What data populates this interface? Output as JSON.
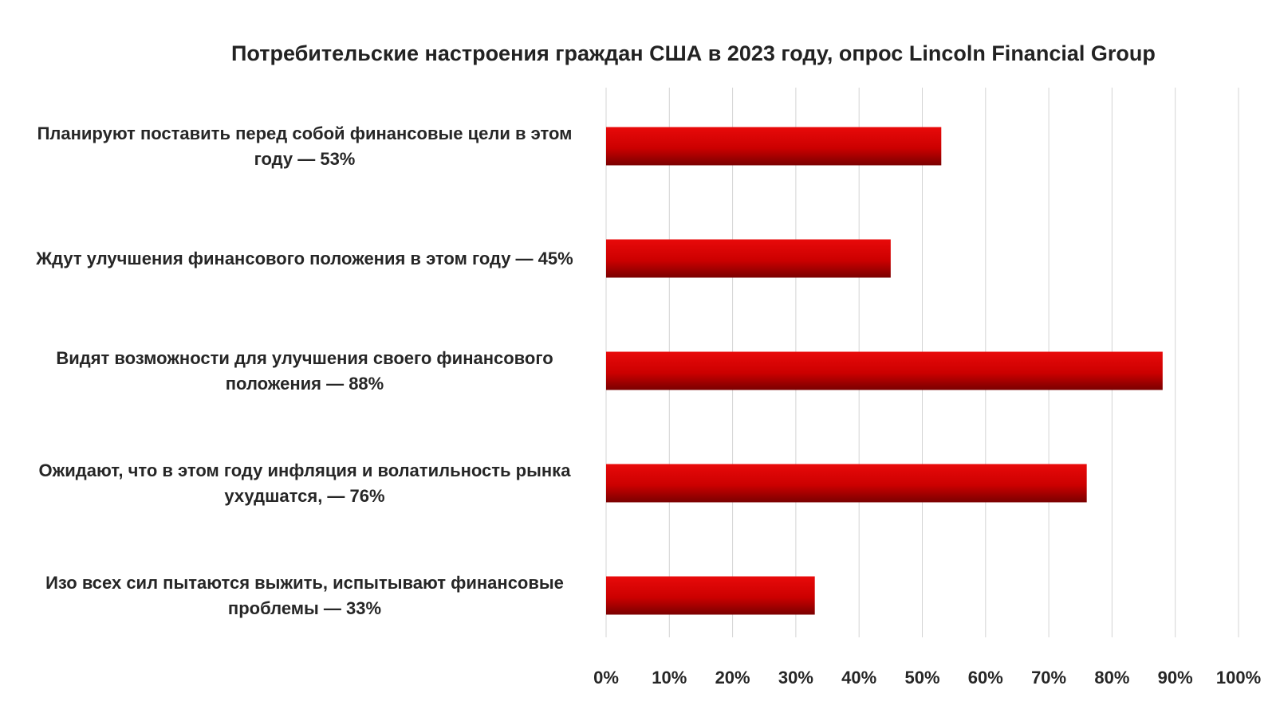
{
  "chart_data": {
    "type": "bar",
    "orientation": "horizontal",
    "title": "Потребительские настроения граждан США в 2023 году, опрос Lincoln Financial Group",
    "categories": [
      "Планируют поставить перед собой финансовые цели в этом году — 53%",
      "Ждут улучшения финансового положения в этом году — 45%",
      "Видят возможности для улучшения своего финансового положения — 88%",
      "Ожидают, что в этом году инфляция и волатильность рынка ухудшатся, — 76%",
      "Изо всех сил пытаются выжить, испытывают финансовые проблемы — 33%"
    ],
    "values": [
      53,
      45,
      88,
      76,
      33
    ],
    "xlim": [
      0,
      100
    ],
    "x_ticks": [
      "0%",
      "10%",
      "20%",
      "30%",
      "40%",
      "50%",
      "60%",
      "70%",
      "80%",
      "90%",
      "100%"
    ],
    "grid": "vertical",
    "legend": "none",
    "bar_color": "#cc0000"
  }
}
